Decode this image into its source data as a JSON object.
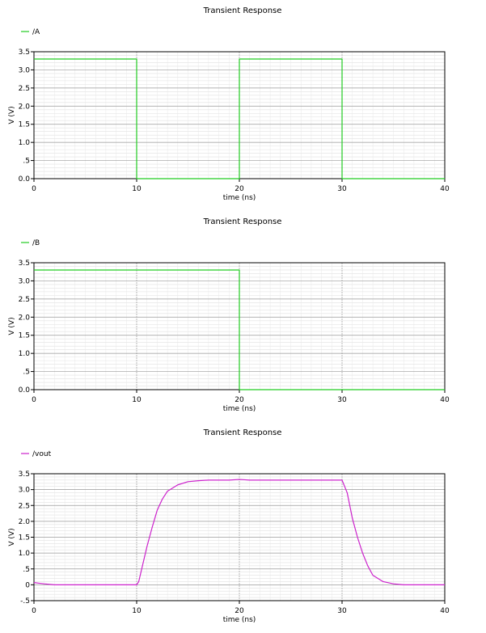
{
  "chart_data": [
    {
      "type": "line",
      "title": "Transient Response",
      "xlabel": "time (ns)",
      "ylabel": "V (V)",
      "xlim": [
        0,
        40
      ],
      "ylim": [
        0,
        3.5
      ],
      "xticks": [
        0,
        10,
        20,
        30,
        40
      ],
      "xtick_labels": [
        "0",
        "10",
        "20",
        "30",
        "40"
      ],
      "yticks": [
        0,
        0.5,
        1.0,
        1.5,
        2.0,
        2.5,
        3.0,
        3.5
      ],
      "ytick_labels": [
        "0.0",
        ".5",
        "1.0",
        "1.5",
        "2.0",
        "2.5",
        "3.0",
        "3.5"
      ],
      "grid": true,
      "legend_position": "top-left",
      "series": [
        {
          "name": "/A",
          "color": "#22cc22",
          "x": [
            0,
            10,
            10,
            20,
            20,
            30,
            30,
            40
          ],
          "y": [
            3.3,
            3.3,
            0,
            0,
            3.3,
            3.3,
            0,
            0
          ]
        }
      ]
    },
    {
      "type": "line",
      "title": "Transient Response",
      "xlabel": "time (ns)",
      "ylabel": "V (V)",
      "xlim": [
        0,
        40
      ],
      "ylim": [
        0,
        3.5
      ],
      "xticks": [
        0,
        10,
        20,
        30,
        40
      ],
      "xtick_labels": [
        "0",
        "10",
        "20",
        "30",
        "40"
      ],
      "yticks": [
        0,
        0.5,
        1.0,
        1.5,
        2.0,
        2.5,
        3.0,
        3.5
      ],
      "ytick_labels": [
        "0.0",
        ".5",
        "1.0",
        "1.5",
        "2.0",
        "2.5",
        "3.0",
        "3.5"
      ],
      "grid": true,
      "legend_position": "top-left",
      "series": [
        {
          "name": "/B",
          "color": "#22cc22",
          "x": [
            0,
            20,
            20,
            40
          ],
          "y": [
            3.3,
            3.3,
            0,
            0
          ]
        }
      ]
    },
    {
      "type": "line",
      "title": "Transient Response",
      "xlabel": "time (ns)",
      "ylabel": "V (V)",
      "xlim": [
        0,
        40
      ],
      "ylim": [
        -0.5,
        3.5
      ],
      "xticks": [
        0,
        10,
        20,
        30,
        40
      ],
      "xtick_labels": [
        "0",
        "10",
        "20",
        "30",
        "40"
      ],
      "yticks": [
        -0.5,
        0,
        0.5,
        1.0,
        1.5,
        2.0,
        2.5,
        3.0,
        3.5
      ],
      "ytick_labels": [
        "-.5",
        "0",
        ".5",
        "1.0",
        "1.5",
        "2.0",
        "2.5",
        "3.0",
        "3.5"
      ],
      "grid": true,
      "legend_position": "top-left",
      "series": [
        {
          "name": "/vout",
          "color": "#cc22cc",
          "x": [
            0,
            0.5,
            1,
            2,
            10,
            10.2,
            11,
            11.5,
            12,
            12.5,
            13,
            14,
            15,
            16,
            17,
            18,
            19,
            20,
            20.5,
            21,
            22,
            25,
            30,
            30.5,
            31,
            31.5,
            32,
            32.5,
            33,
            34,
            35,
            36,
            37,
            40
          ],
          "y": [
            0.07,
            0.05,
            0.03,
            0,
            0,
            0.1,
            1.2,
            1.8,
            2.35,
            2.7,
            2.95,
            3.15,
            3.25,
            3.28,
            3.3,
            3.3,
            3.3,
            3.32,
            3.31,
            3.3,
            3.3,
            3.3,
            3.3,
            2.9,
            2.1,
            1.5,
            1.0,
            0.6,
            0.3,
            0.1,
            0.03,
            0.0,
            0.0,
            0.0
          ]
        }
      ]
    }
  ]
}
